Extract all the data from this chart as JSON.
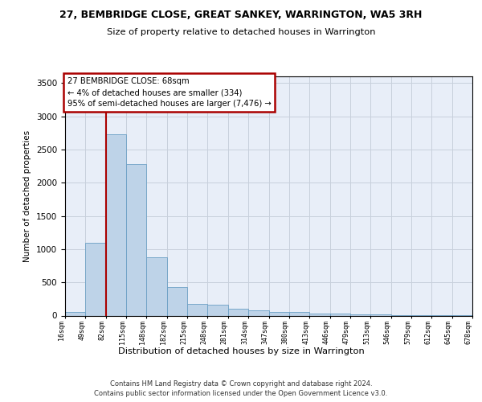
{
  "title": "27, BEMBRIDGE CLOSE, GREAT SANKEY, WARRINGTON, WA5 3RH",
  "subtitle": "Size of property relative to detached houses in Warrington",
  "xlabel": "Distribution of detached houses by size in Warrington",
  "ylabel": "Number of detached properties",
  "bar_values": [
    55,
    1100,
    2730,
    2280,
    880,
    430,
    175,
    165,
    100,
    75,
    60,
    55,
    35,
    30,
    20,
    15,
    10,
    8,
    5,
    3
  ],
  "x_tick_labels": [
    "16sqm",
    "49sqm",
    "82sqm",
    "115sqm",
    "148sqm",
    "182sqm",
    "215sqm",
    "248sqm",
    "281sqm",
    "314sqm",
    "347sqm",
    "380sqm",
    "413sqm",
    "446sqm",
    "479sqm",
    "513sqm",
    "546sqm",
    "579sqm",
    "612sqm",
    "645sqm",
    "678sqm"
  ],
  "bar_color": "#bed3e8",
  "bar_edgecolor": "#6b9fc4",
  "vline_color": "#aa0000",
  "vline_pos": 2,
  "ylim": [
    0,
    3600
  ],
  "yticks": [
    0,
    500,
    1000,
    1500,
    2000,
    2500,
    3000,
    3500
  ],
  "annotation_text": "27 BEMBRIDGE CLOSE: 68sqm\n← 4% of detached houses are smaller (334)\n95% of semi-detached houses are larger (7,476) →",
  "annotation_box_edgecolor": "#aa0000",
  "bg_color": "#e8eef8",
  "grid_color": "#c8d0dc",
  "footer": "Contains HM Land Registry data © Crown copyright and database right 2024.\nContains public sector information licensed under the Open Government Licence v3.0."
}
